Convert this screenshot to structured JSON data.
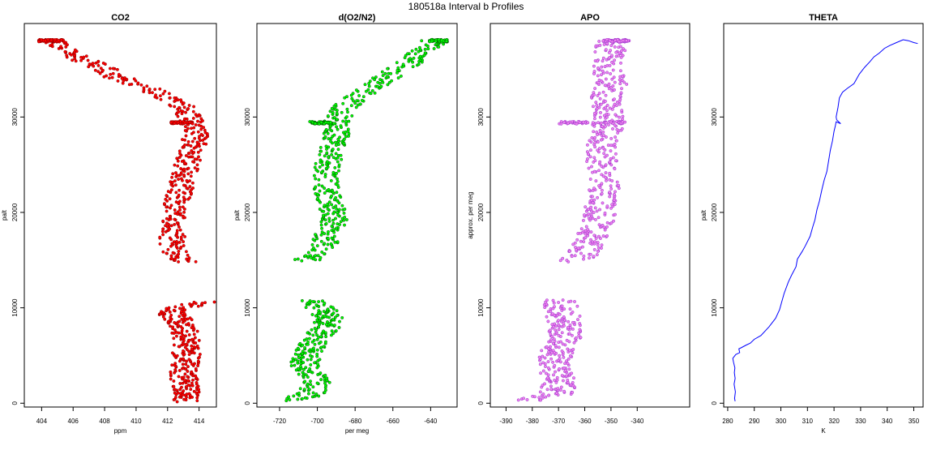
{
  "suptitle": "180518a   Interval b Profiles",
  "chart_data": [
    {
      "type": "scatter",
      "title": "CO2",
      "xlabel": "ppm",
      "ylabel": "palt",
      "xlim": [
        402.9,
        415.1
      ],
      "ylim": [
        -400,
        39800
      ],
      "xticks": [
        404,
        406,
        408,
        410,
        412,
        414
      ],
      "yticks": [
        0,
        10000,
        20000,
        30000
      ],
      "grid": false,
      "color": "#ff0000",
      "edge_color": "#8b0000",
      "profile": [
        [
          404.8,
          38000
        ],
        [
          405.1,
          37300
        ],
        [
          405.8,
          36700
        ],
        [
          406.6,
          36000
        ],
        [
          407.6,
          35300
        ],
        [
          408.4,
          34600
        ],
        [
          408.9,
          34100
        ],
        [
          409.7,
          33600
        ],
        [
          410.7,
          33000
        ],
        [
          411.9,
          32300
        ],
        [
          412.6,
          31500
        ],
        [
          413.3,
          30700
        ],
        [
          413.5,
          29400
        ],
        [
          413.8,
          28200
        ],
        [
          413.6,
          26800
        ],
        [
          413.3,
          25300
        ],
        [
          413.0,
          23600
        ],
        [
          412.8,
          22200
        ],
        [
          412.5,
          20800
        ],
        [
          412.3,
          19300
        ],
        [
          412.3,
          17800
        ],
        [
          412.3,
          16300
        ],
        [
          412.8,
          15200
        ],
        [
          413.0,
          14800
        ]
      ],
      "profile2": [
        [
          414.2,
          10600
        ],
        [
          413.2,
          10200
        ],
        [
          412.2,
          9400
        ],
        [
          412.8,
          8600
        ],
        [
          413.1,
          7600
        ],
        [
          413.3,
          6500
        ],
        [
          413.2,
          5300
        ],
        [
          413.1,
          4200
        ],
        [
          413.0,
          3200
        ],
        [
          413.1,
          2200
        ],
        [
          413.2,
          1000
        ],
        [
          413.3,
          200
        ]
      ],
      "spread": 0.8,
      "flats": [
        [
          404.6,
          38000,
          1.6
        ],
        [
          412.9,
          29400,
          1.4
        ]
      ]
    },
    {
      "type": "scatter",
      "title": "d(O2/N2)",
      "xlabel": "per meg",
      "ylabel": "palt",
      "xlim": [
        -732,
        -626
      ],
      "ylim": [
        -400,
        39800
      ],
      "xticks": [
        -720,
        -700,
        -680,
        -660,
        -640
      ],
      "yticks": [
        0,
        10000,
        20000,
        30000
      ],
      "grid": false,
      "color": "#00ff00",
      "edge_color": "#005000",
      "profile": [
        [
          -638,
          38000
        ],
        [
          -644,
          37000
        ],
        [
          -650,
          36000
        ],
        [
          -657,
          35000
        ],
        [
          -665,
          34000
        ],
        [
          -672,
          33000
        ],
        [
          -680,
          32000
        ],
        [
          -686,
          30800
        ],
        [
          -690,
          29400
        ],
        [
          -690,
          28000
        ],
        [
          -693,
          26500
        ],
        [
          -695,
          25000
        ],
        [
          -696,
          23500
        ],
        [
          -695,
          22000
        ],
        [
          -692,
          20500
        ],
        [
          -691,
          19000
        ],
        [
          -695,
          17500
        ],
        [
          -697,
          16000
        ],
        [
          -704,
          15200
        ],
        [
          -708,
          14900
        ]
      ],
      "profile2": [
        [
          -704,
          10800
        ],
        [
          -699,
          10000
        ],
        [
          -694,
          9000
        ],
        [
          -696,
          8000
        ],
        [
          -700,
          7000
        ],
        [
          -703,
          6000
        ],
        [
          -706,
          5000
        ],
        [
          -707,
          4000
        ],
        [
          -703,
          3000
        ],
        [
          -700,
          2000
        ],
        [
          -703,
          1000
        ],
        [
          -712,
          300
        ]
      ],
      "spread": 7,
      "flats": [
        [
          -636,
          38000,
          10
        ],
        [
          -698,
          29400,
          12
        ]
      ]
    },
    {
      "type": "scatter",
      "title": "APO",
      "xlabel": "",
      "ylabel": "approx. per meg",
      "xlim": [
        -396,
        -320
      ],
      "ylim": [
        -400,
        39800
      ],
      "xticks": [
        -390,
        -380,
        -370,
        -360,
        -350,
        -340
      ],
      "yticks": [
        0,
        10000,
        20000,
        30000
      ],
      "grid": false,
      "color": "#ee82ee",
      "edge_color": "#9932cc",
      "profile": [
        [
          -350,
          38000
        ],
        [
          -351,
          36500
        ],
        [
          -352,
          35000
        ],
        [
          -350,
          33500
        ],
        [
          -352,
          32000
        ],
        [
          -351,
          30500
        ],
        [
          -351,
          29400
        ],
        [
          -352,
          28000
        ],
        [
          -354,
          26500
        ],
        [
          -353,
          25000
        ],
        [
          -352,
          23500
        ],
        [
          -353,
          22000
        ],
        [
          -354,
          20500
        ],
        [
          -355,
          19000
        ],
        [
          -357,
          17500
        ],
        [
          -360,
          16000
        ],
        [
          -362,
          15200
        ],
        [
          -364,
          14900
        ]
      ],
      "profile2": [
        [
          -370,
          10800
        ],
        [
          -369,
          10000
        ],
        [
          -368,
          9000
        ],
        [
          -368,
          8000
        ],
        [
          -368,
          7000
        ],
        [
          -369,
          6000
        ],
        [
          -371,
          5000
        ],
        [
          -372,
          4000
        ],
        [
          -371,
          3000
        ],
        [
          -370,
          2000
        ],
        [
          -371,
          1000
        ],
        [
          -380,
          300
        ]
      ],
      "spread": 6,
      "flats": [
        [
          -348,
          38000,
          10
        ],
        [
          -358,
          29400,
          28
        ]
      ]
    },
    {
      "type": "line",
      "title": "THETA",
      "xlabel": "K",
      "ylabel": "palt",
      "xlim": [
        278.5,
        353.5
      ],
      "ylim": [
        -400,
        39800
      ],
      "xticks": [
        280,
        290,
        300,
        310,
        320,
        330,
        340,
        350
      ],
      "yticks": [
        0,
        10000,
        20000,
        30000
      ],
      "grid": false,
      "color": "#0000ff",
      "points": [
        [
          282.8,
          200
        ],
        [
          282.6,
          500
        ],
        [
          282.9,
          1200
        ],
        [
          282.4,
          2000
        ],
        [
          282.8,
          2600
        ],
        [
          282.5,
          3200
        ],
        [
          282.7,
          3700
        ],
        [
          282.2,
          4300
        ],
        [
          281.9,
          4700
        ],
        [
          283.0,
          5100
        ],
        [
          284.5,
          5300
        ],
        [
          284.2,
          5700
        ],
        [
          285.0,
          5800
        ],
        [
          287.0,
          6100
        ],
        [
          288.5,
          6300
        ],
        [
          290.0,
          6700
        ],
        [
          292.5,
          7100
        ],
        [
          295.5,
          8000
        ],
        [
          298.0,
          8900
        ],
        [
          299.5,
          9800
        ],
        [
          300.3,
          10600
        ],
        [
          301.2,
          11500
        ],
        [
          302.8,
          12700
        ],
        [
          304.0,
          13400
        ],
        [
          305.7,
          14300
        ],
        [
          306.2,
          15100
        ],
        [
          308.0,
          15900
        ],
        [
          309.2,
          16500
        ],
        [
          311.0,
          17500
        ],
        [
          312.0,
          18500
        ],
        [
          312.8,
          19200
        ],
        [
          313.6,
          20300
        ],
        [
          314.5,
          21200
        ],
        [
          315.5,
          22500
        ],
        [
          316.3,
          23400
        ],
        [
          317.3,
          24300
        ],
        [
          318.0,
          25500
        ],
        [
          318.6,
          26500
        ],
        [
          319.4,
          27500
        ],
        [
          320.0,
          28500
        ],
        [
          320.5,
          29100
        ],
        [
          320.8,
          29500
        ],
        [
          322.5,
          29300
        ],
        [
          321.0,
          29700
        ],
        [
          320.8,
          30000
        ],
        [
          321.5,
          31000
        ],
        [
          322.0,
          32000
        ],
        [
          323.2,
          32600
        ],
        [
          325.0,
          33000
        ],
        [
          327.5,
          33500
        ],
        [
          329.5,
          34500
        ],
        [
          331.5,
          35200
        ],
        [
          333.5,
          35800
        ],
        [
          335.0,
          36300
        ],
        [
          337.0,
          36700
        ],
        [
          339.0,
          37200
        ],
        [
          341.0,
          37500
        ],
        [
          343.5,
          37800
        ],
        [
          346.0,
          38100
        ],
        [
          348.0,
          38000
        ],
        [
          350.0,
          37800
        ],
        [
          351.5,
          37700
        ]
      ]
    }
  ]
}
